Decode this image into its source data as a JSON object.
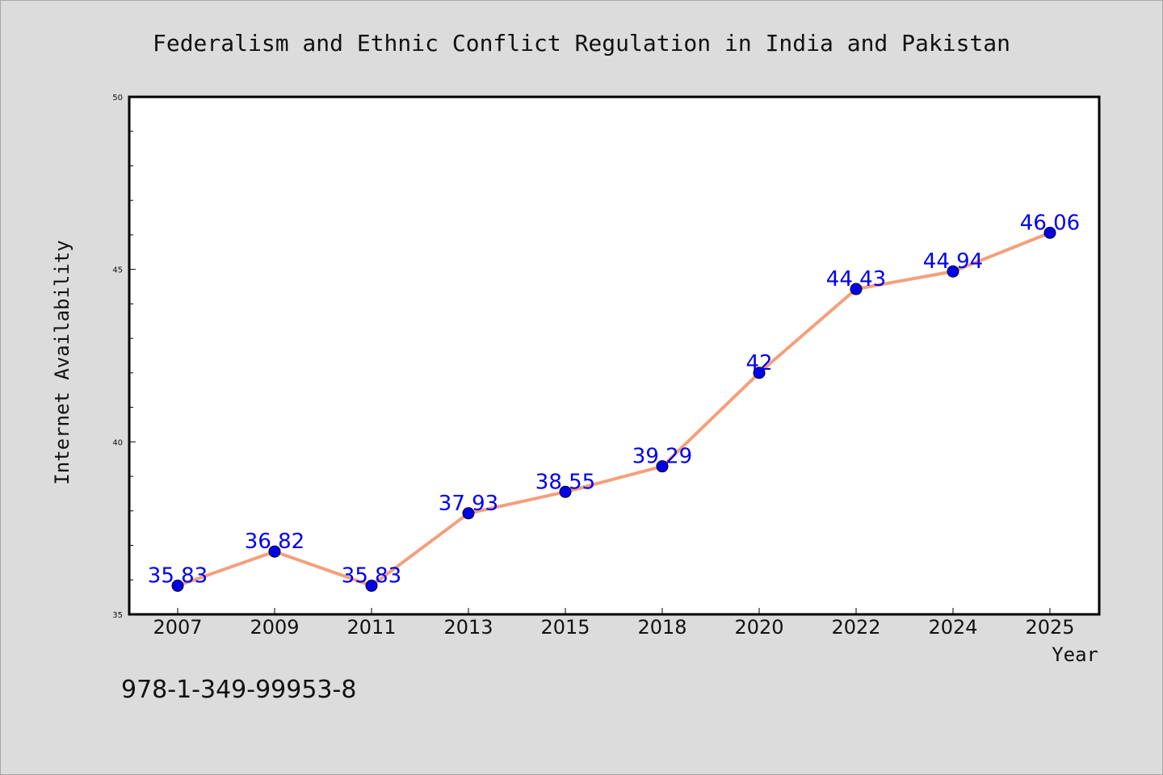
{
  "chart_data": {
    "type": "line",
    "title": "Federalism and Ethnic Conflict Regulation in India and Pakistan",
    "xlabel": "Year",
    "ylabel": "Internet Availability",
    "categories": [
      "2007",
      "2009",
      "2011",
      "2013",
      "2015",
      "2018",
      "2020",
      "2022",
      "2024",
      "2025"
    ],
    "series": [
      {
        "values": [
          35.83,
          36.82,
          35.83,
          37.93,
          38.55,
          39.29,
          42,
          44.43,
          44.94,
          46.06
        ],
        "labels": [
          "35.83",
          "36.82",
          "35.83",
          "37.93",
          "38.55",
          "39.29",
          "42",
          "44.43",
          "44.94",
          "46.06"
        ]
      }
    ],
    "ylim": [
      35,
      50
    ],
    "yticks": [
      "35",
      "40",
      "45",
      "50"
    ],
    "grid": false,
    "legend": "none"
  },
  "footer_text": "978-1-349-99953-8",
  "colors": {
    "background": "#dcdcdc",
    "plot_background": "#ffffff",
    "line": "#f4a07c",
    "marker": "#0000ee",
    "data_label": "#0000ee"
  }
}
